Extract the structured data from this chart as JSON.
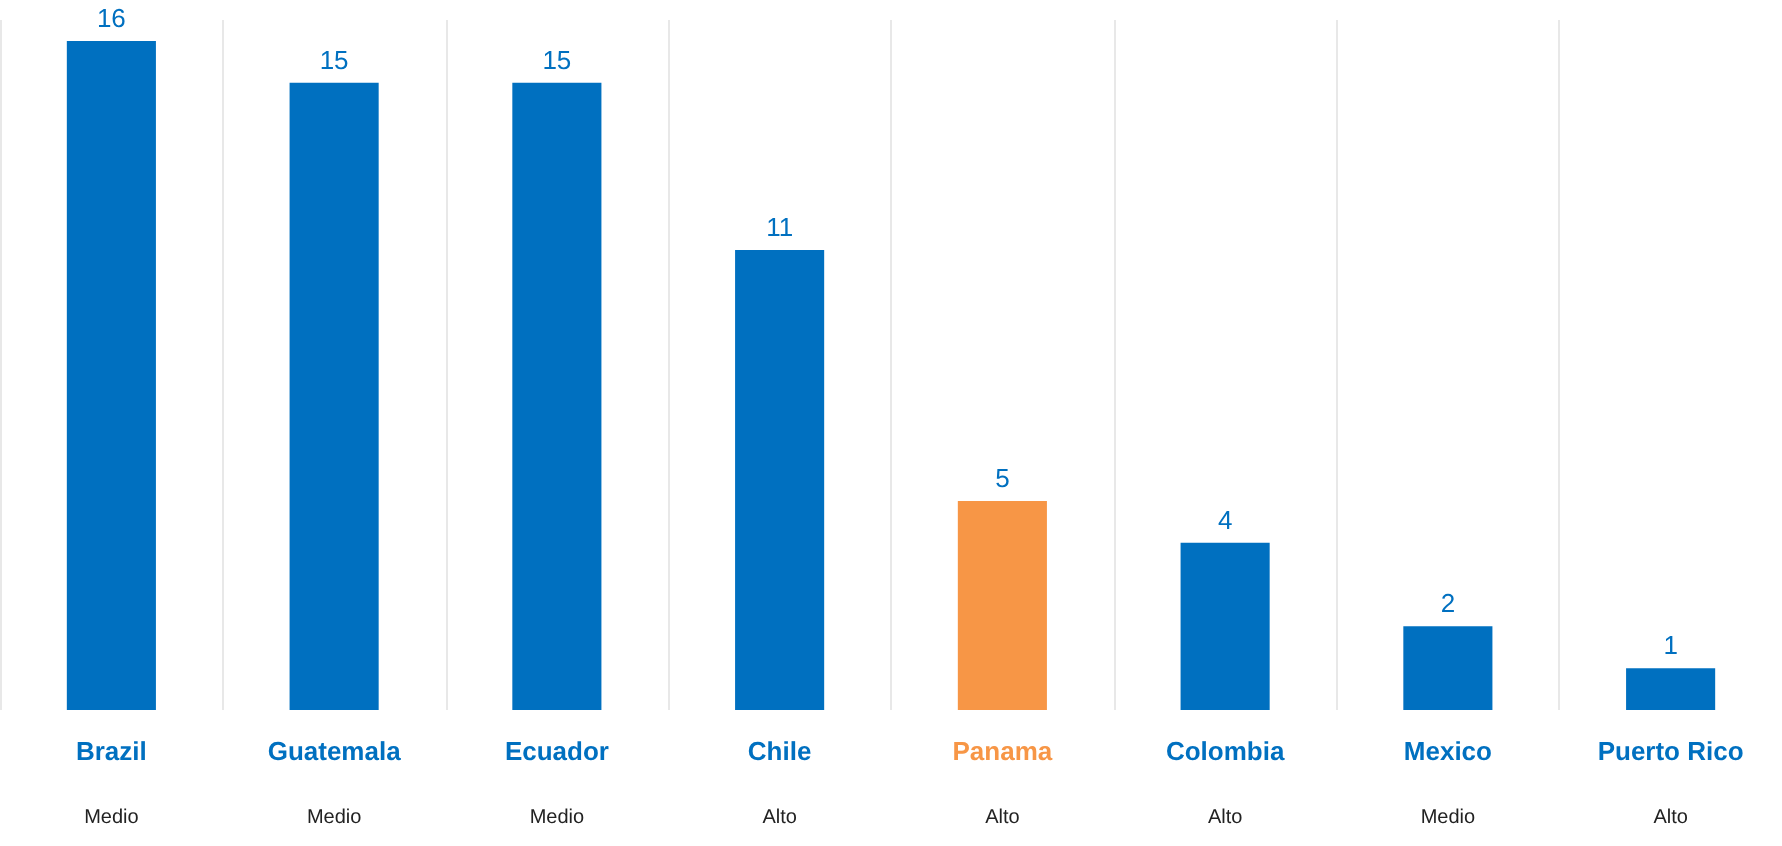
{
  "chart_data": {
    "type": "bar",
    "categories": [
      "Brazil",
      "Guatemala",
      "Ecuador",
      "Chile",
      "Panama",
      "Colombia",
      "Mexico",
      "Puerto Rico"
    ],
    "values": [
      16,
      15,
      15,
      11,
      5,
      4,
      2,
      1
    ],
    "colors": [
      "#0070c0",
      "#0070c0",
      "#0070c0",
      "#0070c0",
      "#f79646",
      "#0070c0",
      "#0070c0",
      "#0070c0"
    ],
    "data_labels": true,
    "ylim": [
      0,
      16.5
    ],
    "tick_labels": "x",
    "grid": "x",
    "annotations": [
      "Medio",
      "Medio",
      "Medio",
      "Alto",
      "Alto",
      "Alto",
      "Medio",
      "Alto"
    ]
  }
}
